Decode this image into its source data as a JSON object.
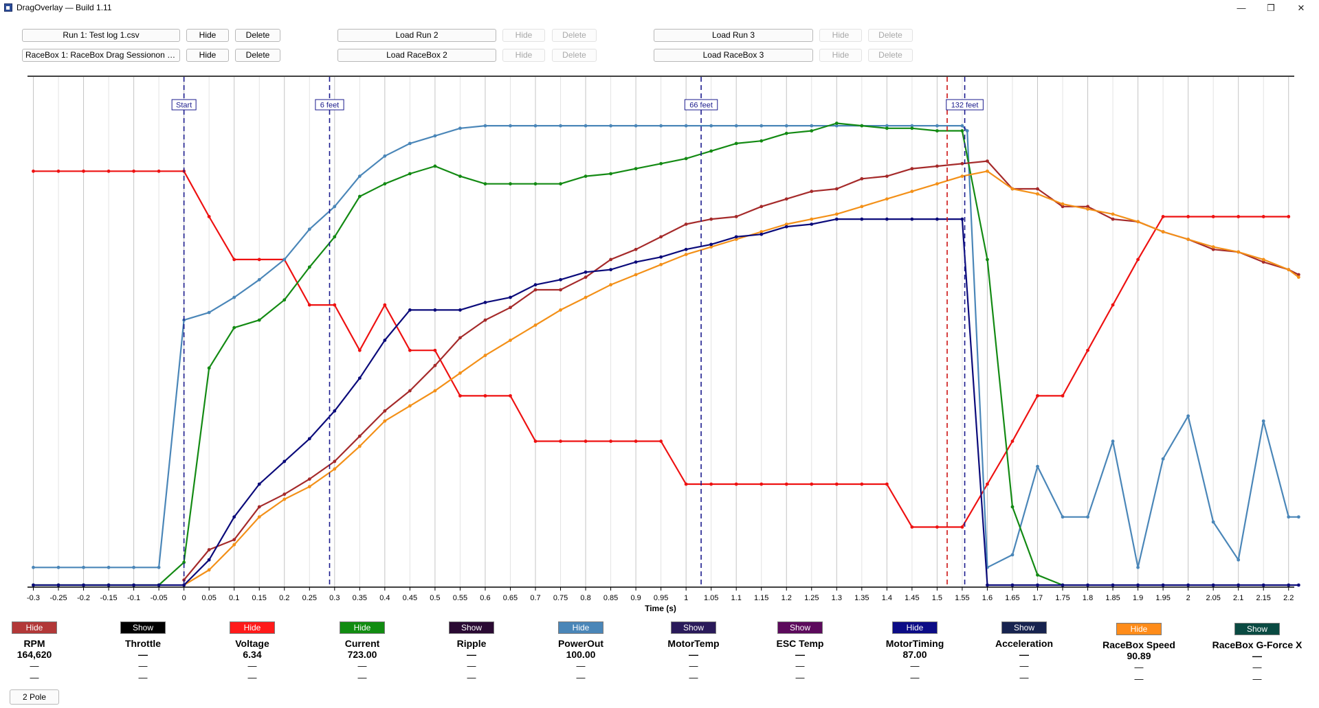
{
  "window": {
    "title": "DragOverlay — Build 1.11",
    "controls": {
      "minimize": "—",
      "maximize": "❐",
      "close": "✕"
    }
  },
  "runs": {
    "row1": [
      {
        "file": "Run 1: Test log 1.csv",
        "hide": "Hide",
        "delete": "Delete",
        "enabled": true
      },
      {
        "file": "Load Run 2",
        "hide": "Hide",
        "delete": "Delete",
        "enabled": false
      },
      {
        "file": "Load Run 3",
        "hide": "Hide",
        "delete": "Delete",
        "enabled": false
      }
    ],
    "row2": [
      {
        "file": "RaceBox 1: RaceBox Drag Sessionon 04...",
        "hide": "Hide",
        "delete": "Delete",
        "enabled": true
      },
      {
        "file": "Load RaceBox 2",
        "hide": "Hide",
        "delete": "Delete",
        "enabled": false
      },
      {
        "file": "Load RaceBox 3",
        "hide": "Hide",
        "delete": "Delete",
        "enabled": false
      }
    ]
  },
  "chart_data": {
    "type": "line",
    "xlabel": "Time (s)",
    "xlim": [
      -0.3,
      2.22
    ],
    "ylim": [
      0,
      100
    ],
    "x_ticks": [
      "-0.3",
      "-0.25",
      "-0.2",
      "-0.15",
      "-0.1",
      "-0.05",
      "0",
      "0.05",
      "0.1",
      "0.15",
      "0.2",
      "0.25",
      "0.3",
      "0.35",
      "0.4",
      "0.45",
      "0.5",
      "0.55",
      "0.6",
      "0.65",
      "0.7",
      "0.75",
      "0.8",
      "0.85",
      "0.9",
      "0.95",
      "1",
      "1.05",
      "1.1",
      "1.15",
      "1.2",
      "1.25",
      "1.3",
      "1.35",
      "1.4",
      "1.45",
      "1.5",
      "1.55",
      "1.6",
      "1.65",
      "1.7",
      "1.75",
      "1.8",
      "1.85",
      "1.9",
      "1.95",
      "2",
      "2.05",
      "2.1",
      "2.15",
      "2.2"
    ],
    "markers": [
      {
        "label": "Start",
        "x": 0,
        "color": "#1a1a8c"
      },
      {
        "label": "6 feet",
        "x": 0.29,
        "color": "#1a1a8c"
      },
      {
        "label": "66 feet",
        "x": 1.03,
        "color": "#1a1a8c"
      },
      {
        "label": "",
        "x": 1.52,
        "color": "#cc1111"
      },
      {
        "label": "132 feet",
        "x": 1.555,
        "color": "#1a1a8c"
      }
    ],
    "series": [
      {
        "name": "Voltage",
        "color": "#ee1111",
        "dots": true,
        "x": [
          -0.3,
          -0.25,
          -0.2,
          -0.15,
          -0.1,
          -0.05,
          0,
          0.05,
          0.1,
          0.15,
          0.2,
          0.25,
          0.3,
          0.35,
          0.4,
          0.45,
          0.5,
          0.55,
          0.6,
          0.65,
          0.7,
          0.75,
          0.8,
          0.85,
          0.9,
          0.95,
          1,
          1.05,
          1.1,
          1.15,
          1.2,
          1.25,
          1.3,
          1.35,
          1.4,
          1.45,
          1.5,
          1.55,
          1.6,
          1.65,
          1.7,
          1.75,
          1.8,
          1.85,
          1.9,
          1.95,
          2,
          2.05,
          2.1,
          2.15,
          2.2
        ],
        "y": [
          82,
          82,
          82,
          82,
          82,
          82,
          82,
          73,
          64.5,
          64.5,
          64.5,
          55.5,
          55.5,
          46.5,
          55.5,
          46.5,
          46.5,
          37.5,
          37.5,
          37.5,
          28.5,
          28.5,
          28.5,
          28.5,
          28.5,
          28.5,
          20,
          20,
          20,
          20,
          20,
          20,
          20,
          20,
          20,
          11.5,
          11.5,
          11.5,
          20,
          28.5,
          37.5,
          37.5,
          46.5,
          55.5,
          64.5,
          73,
          73,
          73,
          73,
          73,
          73
        ]
      },
      {
        "name": "PowerOut",
        "color": "#4a86b8",
        "dots": true,
        "x": [
          -0.3,
          -0.25,
          -0.2,
          -0.15,
          -0.1,
          -0.05,
          0,
          0.05,
          0.1,
          0.15,
          0.2,
          0.25,
          0.3,
          0.35,
          0.4,
          0.45,
          0.5,
          0.55,
          0.6,
          0.65,
          0.7,
          0.75,
          0.8,
          0.85,
          0.9,
          0.95,
          1,
          1.05,
          1.1,
          1.15,
          1.2,
          1.25,
          1.3,
          1.35,
          1.4,
          1.45,
          1.5,
          1.55,
          1.56,
          1.6,
          1.65,
          1.7,
          1.75,
          1.8,
          1.85,
          1.9,
          1.95,
          2,
          2.05,
          2.1,
          2.15,
          2.2,
          2.22
        ],
        "y": [
          3.5,
          3.5,
          3.5,
          3.5,
          3.5,
          3.5,
          52.5,
          54,
          57,
          60.5,
          64.5,
          70.5,
          75,
          81,
          85,
          87.5,
          89,
          90.5,
          91,
          91,
          91,
          91,
          91,
          91,
          91,
          91,
          91,
          91,
          91,
          91,
          91,
          91,
          91,
          91,
          91,
          91,
          91,
          91,
          90,
          3.5,
          6,
          23.5,
          13.5,
          13.5,
          28.5,
          3.5,
          25,
          33.5,
          12.5,
          5,
          32.5,
          13.5,
          13.5
        ]
      },
      {
        "name": "Current",
        "color": "#138a13",
        "dots": true,
        "x": [
          -0.3,
          -0.25,
          -0.2,
          -0.15,
          -0.1,
          -0.05,
          0,
          0.05,
          0.1,
          0.15,
          0.2,
          0.25,
          0.3,
          0.35,
          0.4,
          0.45,
          0.5,
          0.55,
          0.6,
          0.65,
          0.7,
          0.75,
          0.8,
          0.85,
          0.9,
          0.95,
          1,
          1.05,
          1.1,
          1.15,
          1.2,
          1.25,
          1.3,
          1.35,
          1.4,
          1.45,
          1.5,
          1.55,
          1.6,
          1.65,
          1.7,
          1.75
        ],
        "y": [
          0,
          0,
          0,
          0,
          0,
          0,
          4.5,
          43,
          51,
          52.5,
          56.5,
          63,
          69,
          77,
          79.5,
          81.5,
          83,
          81,
          79.5,
          79.5,
          79.5,
          79.5,
          81,
          81.5,
          82.5,
          83.5,
          84.5,
          86,
          87.5,
          88,
          89.5,
          90,
          91.5,
          91,
          90.5,
          90.5,
          90,
          90,
          64.5,
          15.5,
          2,
          0
        ]
      },
      {
        "name": "RPM",
        "color": "#a52a2a",
        "dots": true,
        "x": [
          0,
          0.05,
          0.1,
          0.15,
          0.2,
          0.25,
          0.3,
          0.35,
          0.4,
          0.45,
          0.5,
          0.55,
          0.6,
          0.65,
          0.7,
          0.75,
          0.8,
          0.85,
          0.9,
          0.95,
          1,
          1.05,
          1.1,
          1.15,
          1.2,
          1.25,
          1.3,
          1.35,
          1.4,
          1.45,
          1.5,
          1.55,
          1.6,
          1.65,
          1.7,
          1.75,
          1.8,
          1.85,
          1.9,
          1.95,
          2,
          2.05,
          2.1,
          2.15,
          2.2,
          2.22
        ],
        "y": [
          1,
          7,
          9,
          15.5,
          18,
          21,
          24.5,
          29.5,
          34.5,
          38.5,
          43.5,
          49,
          52.5,
          55,
          58.5,
          58.5,
          61,
          64.5,
          66.5,
          69,
          71.5,
          72.5,
          73,
          75,
          76.5,
          78,
          78.5,
          80.5,
          81,
          82.5,
          83,
          83.5,
          84,
          78.5,
          78.5,
          75,
          75,
          72.5,
          72,
          70,
          68.5,
          66.5,
          66,
          64,
          62.5,
          61.5
        ]
      },
      {
        "name": "RaceBox Speed",
        "color": "#f39018",
        "dots": true,
        "x": [
          0,
          0.05,
          0.1,
          0.15,
          0.2,
          0.25,
          0.3,
          0.35,
          0.4,
          0.45,
          0.5,
          0.55,
          0.6,
          0.65,
          0.7,
          0.75,
          0.8,
          0.85,
          0.9,
          0.95,
          1,
          1.05,
          1.1,
          1.15,
          1.2,
          1.25,
          1.3,
          1.35,
          1.4,
          1.45,
          1.5,
          1.55,
          1.6,
          1.65,
          1.7,
          1.75,
          1.8,
          1.85,
          1.9,
          1.95,
          2,
          2.05,
          2.1,
          2.15,
          2.2,
          2.22
        ],
        "y": [
          0,
          3,
          8,
          13.5,
          17,
          19.5,
          23,
          27.5,
          32.5,
          35.5,
          38.5,
          42,
          45.5,
          48.5,
          51.5,
          54.5,
          57,
          59.5,
          61.5,
          63.5,
          65.5,
          67,
          68.5,
          70,
          71.5,
          72.5,
          73.5,
          75,
          76.5,
          78,
          79.5,
          81,
          82,
          78.5,
          77.5,
          75.5,
          74.5,
          73.5,
          72,
          70,
          68.5,
          67,
          66,
          64.5,
          62.5,
          61
        ]
      },
      {
        "name": "MotorTiming",
        "color": "#0a0a7a",
        "dots": true,
        "x": [
          -0.3,
          -0.25,
          -0.2,
          -0.15,
          -0.1,
          -0.05,
          0,
          0.05,
          0.1,
          0.15,
          0.2,
          0.25,
          0.3,
          0.35,
          0.4,
          0.45,
          0.5,
          0.55,
          0.6,
          0.65,
          0.7,
          0.75,
          0.8,
          0.85,
          0.9,
          0.95,
          1,
          1.05,
          1.1,
          1.15,
          1.2,
          1.25,
          1.3,
          1.35,
          1.4,
          1.45,
          1.5,
          1.55,
          1.6,
          1.65,
          1.7,
          1.75,
          1.8,
          1.85,
          1.9,
          1.95,
          2,
          2.05,
          2.1,
          2.15,
          2.2,
          2.22
        ],
        "y": [
          0,
          0,
          0,
          0,
          0,
          0,
          0,
          5,
          13.5,
          20,
          24.5,
          29,
          34.5,
          41,
          48.5,
          54.5,
          54.5,
          54.5,
          56,
          57,
          59.5,
          60.5,
          62,
          62.5,
          64,
          65,
          66.5,
          67.5,
          69,
          69.5,
          71,
          71.5,
          72.5,
          72.5,
          72.5,
          72.5,
          72.5,
          72.5,
          0,
          0,
          0,
          0,
          0,
          0,
          0,
          0,
          0,
          0,
          0,
          0,
          0,
          0
        ]
      }
    ]
  },
  "channels": [
    {
      "name": "RPM",
      "toggle": "Hide",
      "color": "#b23838",
      "value": "164,620",
      "lines": [
        "—",
        "—"
      ]
    },
    {
      "name": "Throttle",
      "toggle": "Show",
      "color": "#000000",
      "value": "—",
      "lines": [
        "—",
        "—"
      ]
    },
    {
      "name": "Voltage",
      "toggle": "Hide",
      "color": "#ff1a1a",
      "value": "6.34",
      "lines": [
        "—",
        "—"
      ]
    },
    {
      "name": "Current",
      "toggle": "Hide",
      "color": "#118c11",
      "value": "723.00",
      "lines": [
        "—",
        "—"
      ]
    },
    {
      "name": "Ripple",
      "toggle": "Show",
      "color": "#2a0a33",
      "value": "—",
      "lines": [
        "—",
        "—"
      ]
    },
    {
      "name": "PowerOut",
      "toggle": "Hide",
      "color": "#4a86b8",
      "value": "100.00",
      "lines": [
        "—",
        "—"
      ]
    },
    {
      "name": "MotorTemp",
      "toggle": "Show",
      "color": "#2a1a5a",
      "value": "—",
      "lines": [
        "—",
        "—"
      ]
    },
    {
      "name": "ESC Temp",
      "toggle": "Show",
      "color": "#5c0a5c",
      "value": "—",
      "lines": [
        "—",
        "—"
      ]
    },
    {
      "name": "MotorTiming",
      "toggle": "Hide",
      "color": "#0c0c86",
      "value": "87.00",
      "lines": [
        "—",
        "—"
      ]
    },
    {
      "name": "Acceleration",
      "toggle": "Show",
      "color": "#17234f",
      "value": "—",
      "lines": [
        "—",
        "—"
      ]
    },
    {
      "name": "RaceBox Speed",
      "toggle": "Hide",
      "color": "#ff8c1a",
      "value": "90.89",
      "lines": [
        "—",
        "—"
      ]
    },
    {
      "name": "RaceBox G-Force X",
      "toggle": "Show",
      "color": "#0a4a42",
      "value": "—",
      "lines": [
        "—",
        "—"
      ]
    }
  ],
  "pole_button": "2 Pole"
}
